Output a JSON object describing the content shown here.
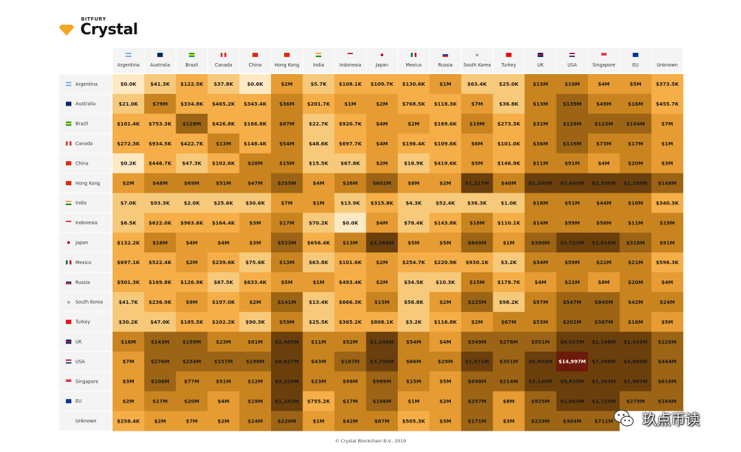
{
  "logo": {
    "brand_small": "BITFURY",
    "brand_big": "Crystal",
    "gem_color": "#F5A623"
  },
  "footer": "© Crystal Blockchain B.V., 2019",
  "watermark": {
    "text": "玖点币读",
    "icon": "wechat-icon"
  },
  "chart_data": {
    "type": "heatmap",
    "columns": [
      "Argentina",
      "Australia",
      "Brazil",
      "Canada",
      "China",
      "Hong Kong",
      "India",
      "Indonesia",
      "Japan",
      "Mexico",
      "Russia",
      "South Korea",
      "Turkey",
      "UK",
      "USA",
      "Singapore",
      "EU",
      "Unknown"
    ],
    "rows": [
      "Argentina",
      "Australia",
      "Brazil",
      "Canada",
      "China",
      "Hong Kong",
      "India",
      "Indonesia",
      "Japan",
      "Mexico",
      "Russia",
      "South Korea",
      "Turkey",
      "UK",
      "USA",
      "Singapore",
      "EU",
      "Unknown"
    ],
    "row_flags": [
      "flag-ar-icon",
      "flag-au-icon",
      "flag-br-icon",
      "flag-ca-icon",
      "flag-cn-icon",
      "flag-hk-icon",
      "flag-in-icon",
      "flag-id-icon",
      "flag-jp-icon",
      "flag-mx-icon",
      "flag-ru-icon",
      "flag-kr-icon",
      "flag-tr-icon",
      "flag-uk-icon",
      "flag-us-icon",
      "flag-sg-icon",
      "flag-eu-icon",
      ""
    ],
    "values": [
      [
        "$0.0K",
        "$41.3K",
        "$122.5K",
        "$37.8K",
        "$0.6K",
        "$2M",
        "$5.7K",
        "$108.1K",
        "$109.7K",
        "$130.6K",
        "$1M",
        "$63.4K",
        "$25.0K",
        "$13M",
        "$10M",
        "$4M",
        "$5M",
        "$373.5K"
      ],
      [
        "$21.0K",
        "$79M",
        "$334.8K",
        "$465.2K",
        "$343.4K",
        "$36M",
        "$201.7K",
        "$1M",
        "$2M",
        "$768.5K",
        "$118.3K",
        "$7M",
        "$36.8K",
        "$13M",
        "$139M",
        "$49M",
        "$16M",
        "$455.7K"
      ],
      [
        "$101.4K",
        "$753.3K",
        "$128M",
        "$426.8K",
        "$166.8K",
        "$87M",
        "$22.7K",
        "$920.7K",
        "$4M",
        "$2M",
        "$169.6K",
        "$19M",
        "$273.3K",
        "$32M",
        "$128M",
        "$123M",
        "$104M",
        "$7M"
      ],
      [
        "$272.3K",
        "$934.5K",
        "$422.7K",
        "$13M",
        "$148.4K",
        "$54M",
        "$48.6K",
        "$697.7K",
        "$4M",
        "$196.4K",
        "$109.6K",
        "$6M",
        "$101.0K",
        "$36M",
        "$119M",
        "$73M",
        "$17M",
        "$1M"
      ],
      [
        "$0.2K",
        "$446.7K",
        "$47.3K",
        "$102.6K",
        "$28M",
        "$15M",
        "$15.5K",
        "$67.8K",
        "$2M",
        "$18.9K",
        "$419.6K",
        "$5M",
        "$146.9K",
        "$11M",
        "$91M",
        "$4M",
        "$20M",
        "$3M"
      ],
      [
        "$2M",
        "$48M",
        "$69M",
        "$51M",
        "$47M",
        "$255M",
        "$4M",
        "$26M",
        "$602M",
        "$8M",
        "$2M",
        "$1,217M",
        "$40M",
        "$2,248M",
        "$7,840M",
        "$2,338M",
        "$1,289M",
        "$148M"
      ],
      [
        "$7.0K",
        "$93.3K",
        "$2.0K",
        "$25.6K",
        "$30.6K",
        "$7M",
        "$1M",
        "$13.9K",
        "$315.8K",
        "$4.3K",
        "$52.4K",
        "$36.3K",
        "$1.0K",
        "$18M",
        "$51M",
        "$44M",
        "$16M",
        "$340.3K"
      ],
      [
        "$6.5K",
        "$622.0K",
        "$963.6K",
        "$164.4K",
        "$3M",
        "$17M",
        "$70.2K",
        "$0.0K",
        "$4M",
        "$78.4K",
        "$143.8K",
        "$18M",
        "$110.1K",
        "$14M",
        "$99M",
        "$58M",
        "$11M",
        "$19M"
      ],
      [
        "$132.2K",
        "$16M",
        "$4M",
        "$4M",
        "$3M",
        "$523M",
        "$656.4K",
        "$13M",
        "$3,364M",
        "$5M",
        "$5M",
        "$849M",
        "$1M",
        "$390M",
        "$3,723M",
        "$1,816M",
        "$318M",
        "$91M"
      ],
      [
        "$697.1K",
        "$522.4K",
        "$2M",
        "$239.6K",
        "$75.6K",
        "$13M",
        "$63.8K",
        "$101.6K",
        "$2M",
        "$254.7K",
        "$220.9K",
        "$930.1K",
        "$3.2K",
        "$34M",
        "$59M",
        "$22M",
        "$21M",
        "$596.3K"
      ],
      [
        "$501.3K",
        "$169.8K",
        "$126.9K",
        "$67.5K",
        "$633.4K",
        "$5M",
        "$1M",
        "$493.4K",
        "$2M",
        "$34.5K",
        "$10.3K",
        "$15M",
        "$178.7K",
        "$4M",
        "$22M",
        "$8M",
        "$20M",
        "$4M"
      ],
      [
        "$41.7K",
        "$236.9K",
        "$9M",
        "$197.0K",
        "$2M",
        "$141M",
        "$13.4K",
        "$666.3K",
        "$15M",
        "$56.8K",
        "$2M",
        "$225M",
        "$98.2K",
        "$97M",
        "$547M",
        "$845M",
        "$42M",
        "$24M"
      ],
      [
        "$30.2K",
        "$47.0K",
        "$185.5K",
        "$102.2K",
        "$90.3K",
        "$59M",
        "$25.5K",
        "$365.2K",
        "$808.1K",
        "$3.2K",
        "$116.8K",
        "$2M",
        "$67M",
        "$53M",
        "$202M",
        "$387M",
        "$16M",
        "$5M"
      ],
      [
        "$16M",
        "$143M",
        "$159M",
        "$23M",
        "$81M",
        "$2,485M",
        "$11M",
        "$52M",
        "$1,248M",
        "$54M",
        "$4M",
        "$349M",
        "$278M",
        "$551M",
        "$6,617M",
        "$2,148M",
        "$1,143M",
        "$226M"
      ],
      [
        "$7M",
        "$276M",
        "$234M",
        "$157M",
        "$198M",
        "$8,827M",
        "$43M",
        "$187M",
        "$3,704M",
        "$66M",
        "$29M",
        "$1,971M",
        "$351M",
        "$6,994M",
        "$14,997M",
        "$7,398M",
        "$3,880M",
        "$444M"
      ],
      [
        "$3M",
        "$106M",
        "$77M",
        "$51M",
        "$12M",
        "$3,229M",
        "$23M",
        "$96M",
        "$989M",
        "$15M",
        "$5M",
        "$698M",
        "$214M",
        "$2,140M",
        "$9,835M",
        "$1,363M",
        "$1,887M",
        "$616M"
      ],
      [
        "$2M",
        "$17M",
        "$20M",
        "$4M",
        "$19M",
        "$1,243M",
        "$755.2K",
        "$17M",
        "$166M",
        "$1M",
        "$2M",
        "$257M",
        "$8M",
        "$925M",
        "$1,664M",
        "$1,710M",
        "$279M",
        "$164M"
      ],
      [
        "$258.4K",
        "$2M",
        "$7M",
        "$2M",
        "$24M",
        "$220M",
        "$1M",
        "$42M",
        "$87M",
        "$505.3K",
        "$3M",
        "$171M",
        "$3M",
        "$229M",
        "$304M",
        "$711M",
        "",
        ""
      ]
    ],
    "color_scale": [
      "#FDE9C4",
      "#F7C97A",
      "#F5AE48",
      "#E69C33",
      "#C98420",
      "#9C6414",
      "#6B3F0C",
      "#6D1A0A"
    ],
    "color_thresholds_usd": [
      1000,
      100000,
      1000000,
      10000000,
      100000000,
      1000000000,
      10000000000
    ]
  }
}
